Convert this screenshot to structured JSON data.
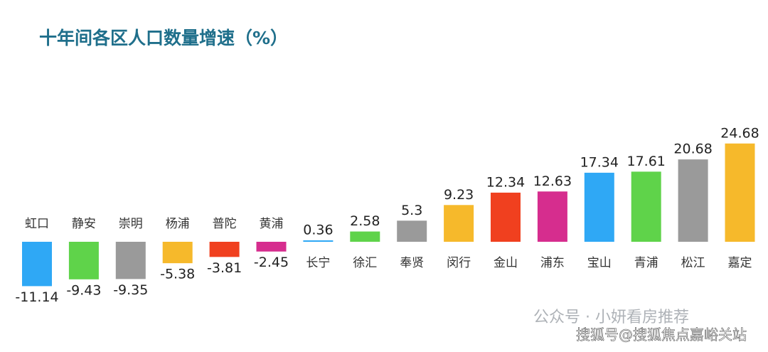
{
  "chart_data": {
    "type": "bar",
    "title": "十年间各区人口数量增速（%）",
    "categories": [
      "虹口",
      "静安",
      "崇明",
      "杨浦",
      "普陀",
      "黄浦",
      "长宁",
      "徐汇",
      "奉贤",
      "闵行",
      "金山",
      "浦东",
      "宝山",
      "青浦",
      "松江",
      "嘉定"
    ],
    "values": [
      -11.14,
      -9.43,
      -9.35,
      -5.38,
      -3.81,
      -2.45,
      0.36,
      2.58,
      5.3,
      9.23,
      12.34,
      12.63,
      17.34,
      17.61,
      20.68,
      24.68
    ],
    "colors": [
      "#2fa8f5",
      "#5fd34a",
      "#9a9a9a",
      "#f6b92b",
      "#f0401f",
      "#d62d8e",
      "#2fa8f5",
      "#5fd34a",
      "#9a9a9a",
      "#f6b92b",
      "#f0401f",
      "#d62d8e",
      "#2fa8f5",
      "#5fd34a",
      "#9a9a9a",
      "#f6b92b"
    ],
    "watermarks": [
      "公众号 · 小妍看房推荐",
      "搜狐号@搜狐焦点嘉峪关站"
    ]
  }
}
